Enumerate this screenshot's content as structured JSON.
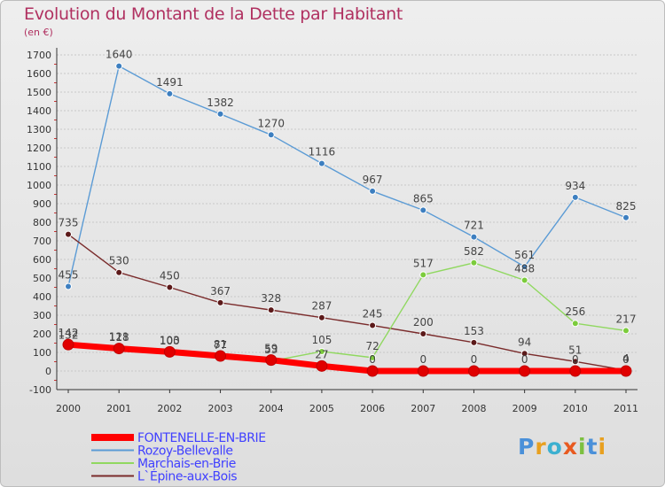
{
  "title": "Evolution du Montant de la Dette par Habitant",
  "unit_label": "(en €)",
  "logo_text": "Proxiti",
  "colors": {
    "title": "#b03060",
    "legend_text": "#4040ff",
    "grid": "#c8c8c8",
    "value_label": "#444444"
  },
  "chart_data": {
    "type": "line",
    "title": "Evolution du Montant de la Dette par Habitant",
    "ylabel": "(en €)",
    "xlabel": "",
    "x": [
      "2000",
      "2001",
      "2002",
      "2003",
      "2004",
      "2005",
      "2006",
      "2007",
      "2008",
      "2009",
      "2010",
      "2011"
    ],
    "ylim": [
      -100,
      1700
    ],
    "yticks": [
      "-100",
      "0",
      "100",
      "200",
      "300",
      "400",
      "500",
      "600",
      "700",
      "800",
      "900",
      "1000",
      "1100",
      "1200",
      "1300",
      "1400",
      "1500",
      "1600",
      "1700"
    ],
    "grid": true,
    "legend_position": "bottom-left",
    "series": [
      {
        "name": "Rozoy-Bellevalle",
        "color": "#5b9bd5",
        "point_color": "#3d7fc0",
        "values": [
          455,
          1640,
          1491,
          1382,
          1270,
          1116,
          967,
          865,
          721,
          561,
          934,
          825
        ],
        "labels": [
          "455",
          "1640",
          "1491",
          "1382",
          "1270",
          "1116",
          "967",
          "865",
          "721",
          "561",
          "934",
          "825"
        ]
      },
      {
        "name": "L`Épine-aux-Bois",
        "color": "#7a2b2b",
        "point_color": "#5c1a1a",
        "values": [
          735,
          530,
          450,
          367,
          328,
          287,
          245,
          200,
          153,
          94,
          51,
          4
        ],
        "labels": [
          "735",
          "530",
          "450",
          "367",
          "328",
          "287",
          "245",
          "200",
          "153",
          "94",
          "51",
          "4"
        ]
      },
      {
        "name": "Marchais-en-Brie",
        "color": "#90d860",
        "point_color": "#7ccc3c",
        "values": [
          132,
          118,
          100,
          77,
          53,
          105,
          72,
          517,
          582,
          488,
          256,
          217
        ],
        "labels": [
          "132",
          "118",
          "100",
          "77",
          "53",
          "105",
          "72",
          "517",
          "582",
          "488",
          "256",
          "217"
        ]
      },
      {
        "name": "FONTENELLE-EN-BRIE",
        "color": "#ff0000",
        "point_color": "#e00000",
        "values": [
          142,
          121,
          103,
          81,
          59,
          27,
          0,
          0,
          0,
          0,
          0,
          0
        ],
        "labels": [
          "142",
          "121",
          "103",
          "81",
          "59",
          "27",
          "0",
          "0",
          "0",
          "0",
          "0",
          "0"
        ]
      }
    ]
  }
}
